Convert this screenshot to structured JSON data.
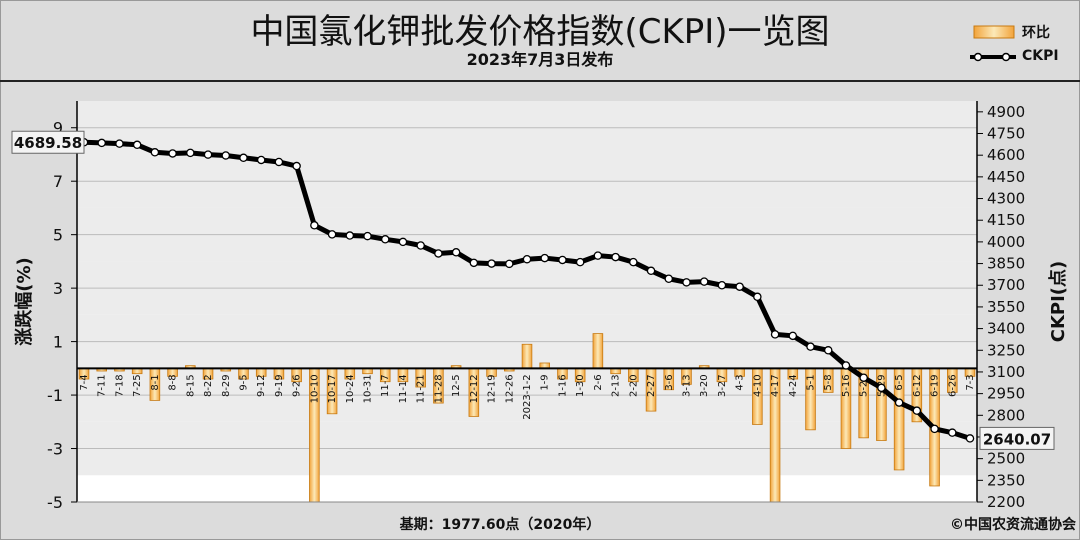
{
  "header": {
    "title": "中国氯化钾批发价格指数(CKPI)一览图",
    "date": "2023年7月3日发布"
  },
  "legend": {
    "bar_label": "环比",
    "line_label": "CKPI"
  },
  "footer": {
    "basis": "基期：1977.60点（2020年）",
    "credit": "©中国农资流通协会"
  },
  "colors": {
    "bar_fill": "#f2a33a",
    "bar_light": "#fbe2a6",
    "line": "#000000",
    "marker_fill": "#ffffff",
    "background": "#dcdcdc",
    "plot_band": "#e8e8e8"
  },
  "chart_data": {
    "type": "bar+line",
    "x": [
      "7-4",
      "7-11",
      "7-18",
      "7-25",
      "8-1",
      "8-8",
      "8-15",
      "8-22",
      "8-29",
      "9-5",
      "9-12",
      "9-19",
      "9-26",
      "10-10",
      "10-17",
      "10-24",
      "10-31",
      "11-7",
      "11-14",
      "11-21",
      "11-28",
      "12-5",
      "12-12",
      "12-19",
      "12-26",
      "2023-1-2",
      "1-9",
      "1-16",
      "1-30",
      "2-6",
      "2-13",
      "2-20",
      "2-27",
      "3-6",
      "3-13",
      "3-20",
      "3-27",
      "4-3",
      "4-10",
      "4-17",
      "4-24",
      "5-1",
      "5-8",
      "5-16",
      "5-22",
      "5-29",
      "6-5",
      "6-12",
      "6-19",
      "6-26",
      "7-3"
    ],
    "series": [
      {
        "name": "环比",
        "axis": "left",
        "type": "bar",
        "values": [
          -0.4,
          -0.1,
          -0.1,
          -0.2,
          -1.2,
          -0.3,
          0.1,
          -0.4,
          -0.1,
          -0.4,
          -0.3,
          -0.4,
          -0.5,
          -5.0,
          -1.7,
          -0.4,
          -0.2,
          -0.5,
          -0.5,
          -0.7,
          -1.3,
          0.1,
          -1.8,
          -0.3,
          -0.1,
          0.9,
          0.2,
          -0.4,
          -0.5,
          1.3,
          -0.2,
          -0.5,
          -1.6,
          -0.8,
          -0.6,
          0.1,
          -0.5,
          -0.3,
          -2.1,
          -5.0,
          -0.4,
          -2.3,
          -0.9,
          -3.0,
          -2.6,
          -2.7,
          -3.8,
          -2.0,
          -4.4,
          -0.9,
          -0.3
        ]
      },
      {
        "name": "CKPI",
        "axis": "right",
        "type": "line",
        "values": [
          4689.58,
          4685,
          4680,
          4672,
          4620,
          4612,
          4616,
          4604,
          4598,
          4582,
          4567,
          4553,
          4525,
          4115,
          4052,
          4044,
          4040,
          4018,
          4000,
          3975,
          3920,
          3928,
          3855,
          3850,
          3848,
          3880,
          3888,
          3875,
          3860,
          3905,
          3895,
          3860,
          3800,
          3745,
          3720,
          3725,
          3700,
          3690,
          3620,
          3360,
          3350,
          3275,
          3250,
          3145,
          3060,
          2990,
          2888,
          2832,
          2706,
          2680,
          2640.07
        ]
      }
    ],
    "y_left": {
      "label": "涨跌幅(%)",
      "ticks": [
        9,
        7,
        5,
        3,
        1,
        -1,
        -3,
        -5
      ],
      "range": [
        -5,
        10
      ]
    },
    "y_right": {
      "label": "CKPI(点)",
      "ticks": [
        4900,
        4750,
        4600,
        4450,
        4300,
        4150,
        4000,
        3850,
        3700,
        3550,
        3400,
        3250,
        3100,
        2950,
        2800,
        2650,
        2500,
        2350,
        2200
      ],
      "range": [
        2200,
        4975
      ]
    },
    "annotations": {
      "start_value": "4689.58",
      "end_value": "2640.07"
    },
    "grid": true,
    "legend_position": "top-right"
  }
}
